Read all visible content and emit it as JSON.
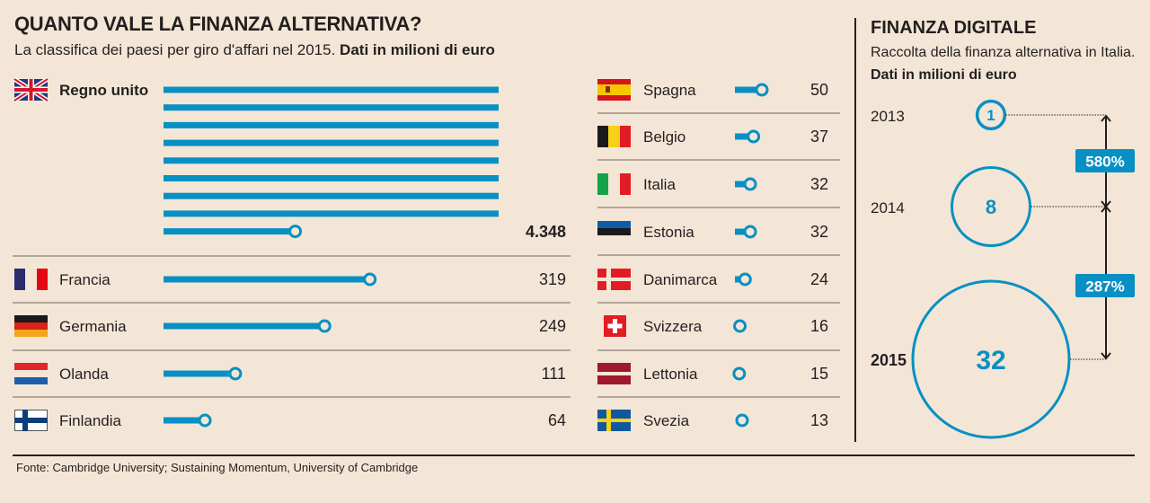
{
  "header": {
    "title": "QUANTO VALE LA FINANZA ALTERNATIVA?",
    "subtitle_plain": "La classifica dei paesi per giro d'affari nel 2015. ",
    "subtitle_bold": "Dati in milioni di euro"
  },
  "side_panel": {
    "title": "FINANZA DIGITALE",
    "subtitle_plain": "Raccolta della finanza alternativa in Italia. ",
    "subtitle_bold": "Dati in milioni di euro"
  },
  "footer": {
    "source": "Fonte: Cambridge University; Sustaining Momentum, University of Cambridge"
  },
  "colors": {
    "background": "#f3e6d6",
    "accent_blue": "#0890c4",
    "text": "#231f20",
    "divider": "#8a7f76"
  },
  "chart_data": [
    {
      "type": "bar",
      "title": "QUANTO VALE LA FINANZA ALTERNATIVA?",
      "subtitle": "La classifica dei paesi per giro d'affari nel 2015. Dati in milioni di euro",
      "unit": "milioni di euro",
      "categories": [
        "Regno unito",
        "Francia",
        "Germania",
        "Olanda",
        "Finlandia",
        "Spagna",
        "Belgio",
        "Italia",
        "Estonia",
        "Danimarca",
        "Svizzera",
        "Lettonia",
        "Svezia"
      ],
      "values": [
        4348,
        319,
        249,
        111,
        64,
        50,
        37,
        32,
        32,
        24,
        16,
        15,
        13
      ],
      "value_labels": [
        "4.348",
        "319",
        "249",
        "111",
        "64",
        "50",
        "37",
        "32",
        "32",
        "24",
        "16",
        "15",
        "13"
      ],
      "flags": [
        "uk-flag",
        "france-flag",
        "germany-flag",
        "netherlands-flag",
        "finland-flag",
        "spain-flag",
        "belgium-flag",
        "italy-flag",
        "estonia-flag",
        "denmark-flag",
        "switzerland-flag",
        "latvia-flag",
        "sweden-flag"
      ],
      "highlight": "Regno unito",
      "note": "Regno unito bar wraps over multiple lines"
    },
    {
      "type": "bubble",
      "title": "FINANZA DIGITALE",
      "subtitle": "Raccolta della finanza alternativa in Italia. Dati in milioni di euro",
      "x": [
        "2013",
        "2014",
        "2015"
      ],
      "values": [
        1,
        8,
        32
      ],
      "value_labels": [
        "1",
        "8",
        "32"
      ],
      "growth": [
        {
          "from": "2013",
          "to": "2014",
          "label": "580%"
        },
        {
          "from": "2014",
          "to": "2015",
          "label": "287%"
        }
      ],
      "highlight": "2015"
    }
  ]
}
